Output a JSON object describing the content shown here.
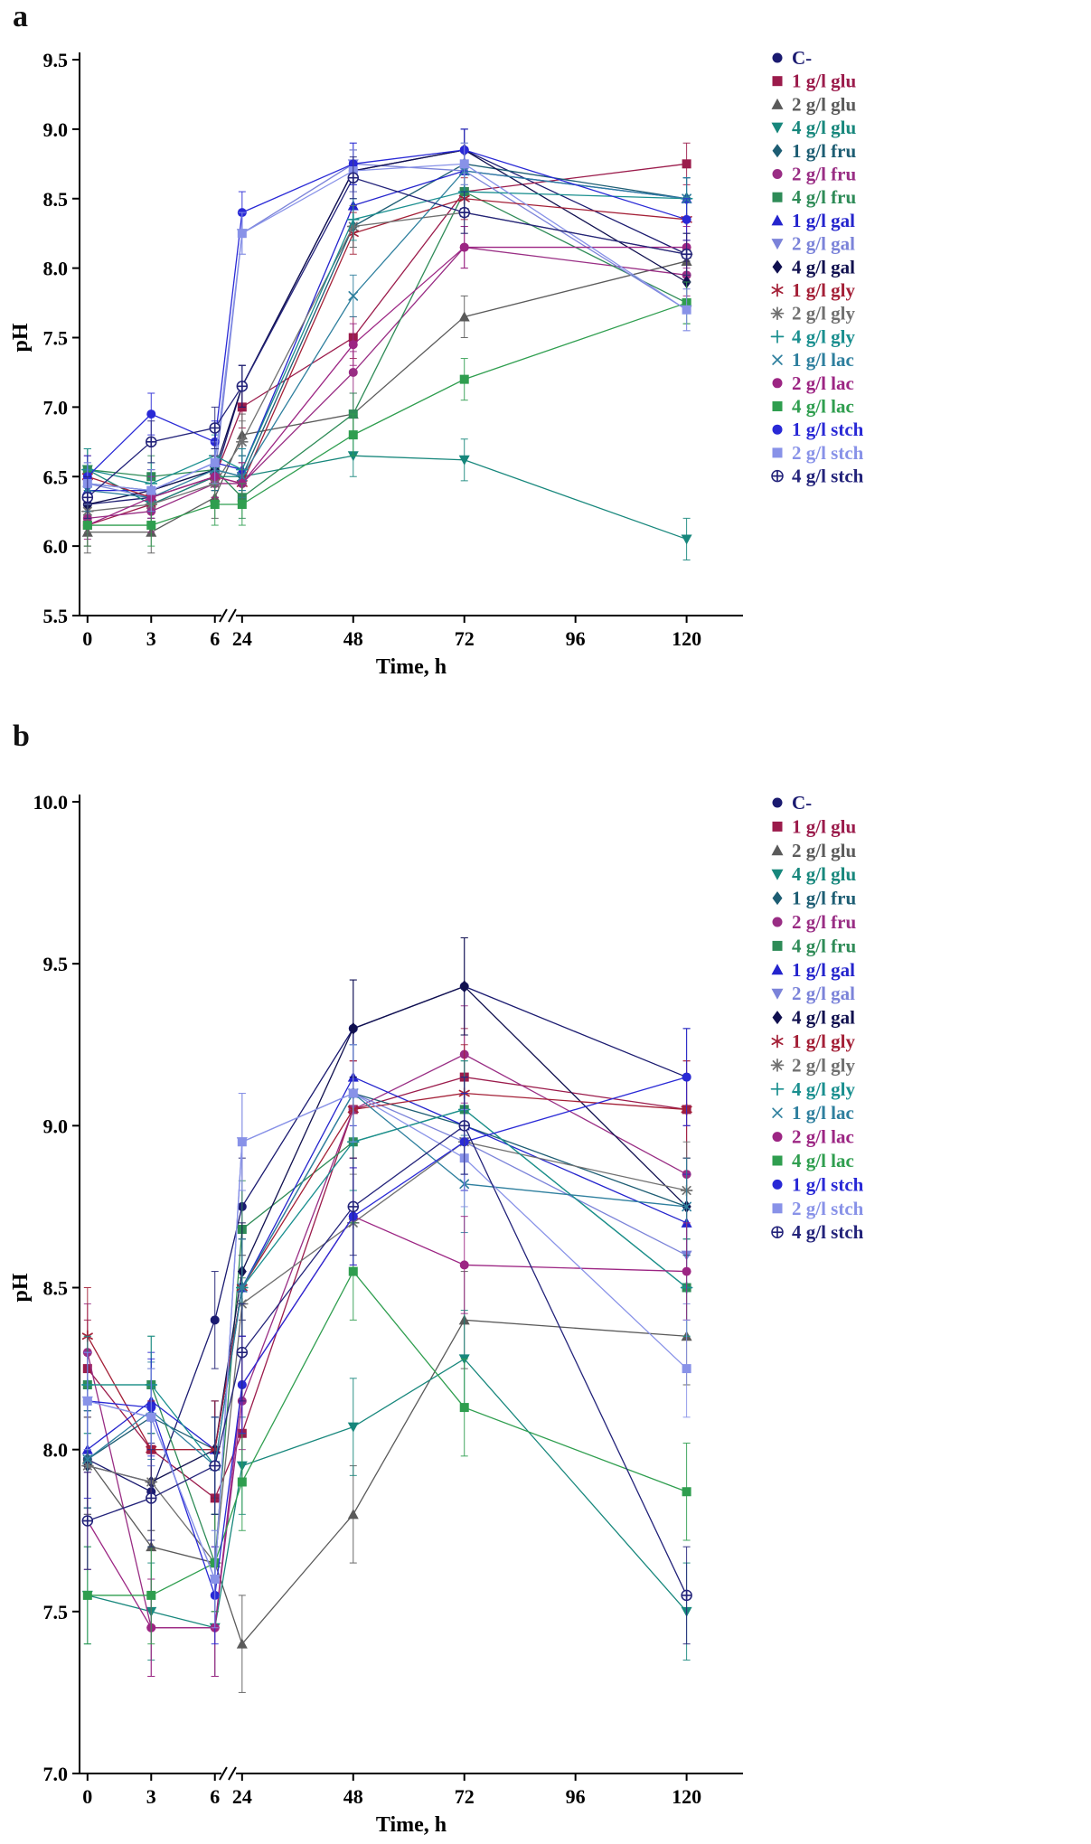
{
  "page": {
    "panel_a_label": "a",
    "panel_b_label": "b"
  },
  "chart_data": [
    {
      "type": "line",
      "panel": "a",
      "xlabel": "Time, h",
      "ylabel": "pH",
      "x": [
        0,
        3,
        6,
        24,
        48,
        72,
        120
      ],
      "x_ticks": [
        0,
        3,
        6,
        24,
        48,
        72,
        96,
        120
      ],
      "x_axis_break": [
        6,
        24
      ],
      "ylim": [
        5.5,
        9.5
      ],
      "y_ticks": [
        5.5,
        6.0,
        6.5,
        7.0,
        7.5,
        8.0,
        8.5,
        9.0,
        9.5
      ],
      "error_bar": 0.15,
      "grid": false,
      "legend_position": "right",
      "series": [
        {
          "name": "C-",
          "color": "#1a1a70",
          "marker": "circle",
          "values": [
            6.3,
            6.35,
            6.5,
            7.15,
            8.7,
            8.85,
            8.1
          ]
        },
        {
          "name": "1 g/l glu",
          "color": "#9b1b4b",
          "marker": "square",
          "values": [
            6.15,
            6.3,
            6.5,
            7.0,
            7.5,
            8.55,
            8.75
          ]
        },
        {
          "name": "2 g/l glu",
          "color": "#5a5a5a",
          "marker": "triangle-up",
          "values": [
            6.1,
            6.1,
            6.35,
            6.8,
            6.95,
            7.65,
            8.05
          ]
        },
        {
          "name": "4 g/l glu",
          "color": "#17877c",
          "marker": "triangle-down",
          "values": [
            6.55,
            6.3,
            6.5,
            6.5,
            6.65,
            6.62,
            6.05
          ]
        },
        {
          "name": "1 g/l fru",
          "color": "#1d5d73",
          "marker": "diamond",
          "values": [
            6.45,
            6.4,
            6.55,
            6.5,
            8.3,
            8.75,
            8.5
          ]
        },
        {
          "name": "2 g/l fru",
          "color": "#992d84",
          "marker": "circle",
          "values": [
            6.2,
            6.25,
            6.45,
            6.45,
            7.25,
            8.15,
            7.95
          ]
        },
        {
          "name": "4 g/l fru",
          "color": "#2e8b57",
          "marker": "square",
          "values": [
            6.55,
            6.5,
            6.55,
            6.35,
            6.95,
            8.55,
            7.75
          ]
        },
        {
          "name": "1 g/l gal",
          "color": "#2424cd",
          "marker": "triangle-up",
          "values": [
            6.4,
            6.4,
            6.6,
            6.55,
            8.45,
            8.7,
            8.5
          ]
        },
        {
          "name": "2 g/l gal",
          "color": "#7b83d9",
          "marker": "triangle-down",
          "values": [
            6.45,
            6.35,
            6.5,
            8.25,
            8.75,
            8.7,
            7.7
          ]
        },
        {
          "name": "4 g/l gal",
          "color": "#10104f",
          "marker": "diamond",
          "values": [
            6.3,
            6.4,
            6.55,
            7.15,
            8.7,
            8.85,
            7.9
          ]
        },
        {
          "name": "1 g/l gly",
          "color": "#a42037",
          "marker": "asterisk",
          "values": [
            6.5,
            6.35,
            6.5,
            6.45,
            8.25,
            8.5,
            8.35
          ]
        },
        {
          "name": "2 g/l gly",
          "color": "#707070",
          "marker": "star",
          "values": [
            6.25,
            6.3,
            6.45,
            6.75,
            8.3,
            8.4,
            8.1
          ]
        },
        {
          "name": "4 g/l gly",
          "color": "#1a8f8f",
          "marker": "plus",
          "values": [
            6.55,
            6.45,
            6.65,
            6.55,
            8.35,
            8.55,
            8.5
          ]
        },
        {
          "name": "1 g/l lac",
          "color": "#2e7f9e",
          "marker": "x",
          "values": [
            6.4,
            6.35,
            6.55,
            6.5,
            7.8,
            8.7,
            8.5
          ]
        },
        {
          "name": "2 g/l lac",
          "color": "#9c2583",
          "marker": "circle",
          "values": [
            6.15,
            6.35,
            6.5,
            6.45,
            7.45,
            8.15,
            8.15
          ]
        },
        {
          "name": "4 g/l lac",
          "color": "#2f9e4f",
          "marker": "square",
          "values": [
            6.15,
            6.15,
            6.3,
            6.3,
            6.8,
            7.2,
            7.75
          ]
        },
        {
          "name": "1 g/l stch",
          "color": "#2929d6",
          "marker": "circle",
          "values": [
            6.5,
            6.95,
            6.75,
            8.4,
            8.75,
            8.85,
            8.35
          ]
        },
        {
          "name": "2 g/l stch",
          "color": "#8892e8",
          "marker": "square",
          "values": [
            6.45,
            6.4,
            6.6,
            8.25,
            8.7,
            8.75,
            7.7
          ]
        },
        {
          "name": "4 g/l stch",
          "color": "#23237a",
          "marker": "circle-cross",
          "values": [
            6.35,
            6.75,
            6.85,
            7.15,
            8.65,
            8.4,
            8.1
          ]
        }
      ]
    },
    {
      "type": "line",
      "panel": "b",
      "xlabel": "Time, h",
      "ylabel": "pH",
      "x": [
        0,
        3,
        6,
        24,
        48,
        72,
        120
      ],
      "x_ticks": [
        0,
        3,
        6,
        24,
        48,
        72,
        96,
        120
      ],
      "x_axis_break": [
        6,
        24
      ],
      "ylim": [
        7.0,
        10.0
      ],
      "y_ticks": [
        7.0,
        7.5,
        8.0,
        8.5,
        9.0,
        9.5,
        10.0
      ],
      "error_bar": 0.15,
      "grid": false,
      "legend_position": "right",
      "series": [
        {
          "name": "C-",
          "color": "#1a1a70",
          "marker": "circle",
          "values": [
            7.97,
            7.87,
            8.4,
            8.75,
            9.3,
            9.43,
            9.15
          ]
        },
        {
          "name": "1 g/l glu",
          "color": "#9b1b4b",
          "marker": "square",
          "values": [
            8.25,
            8.0,
            7.85,
            8.05,
            9.05,
            9.15,
            9.05
          ]
        },
        {
          "name": "2 g/l glu",
          "color": "#5a5a5a",
          "marker": "triangle-up",
          "values": [
            7.97,
            7.7,
            7.65,
            7.4,
            7.8,
            8.4,
            8.35
          ]
        },
        {
          "name": "4 g/l glu",
          "color": "#17877c",
          "marker": "triangle-down",
          "values": [
            7.55,
            7.5,
            7.45,
            7.95,
            8.07,
            8.28,
            7.5
          ]
        },
        {
          "name": "1 g/l fru",
          "color": "#1d5d73",
          "marker": "diamond",
          "values": [
            7.97,
            8.1,
            8.0,
            8.5,
            9.1,
            9.0,
            8.75
          ]
        },
        {
          "name": "2 g/l fru",
          "color": "#992d84",
          "marker": "circle",
          "values": [
            8.3,
            7.45,
            7.45,
            8.15,
            9.05,
            9.22,
            8.85
          ]
        },
        {
          "name": "4 g/l fru",
          "color": "#2e8b57",
          "marker": "square",
          "values": [
            8.2,
            8.2,
            7.65,
            8.68,
            8.95,
            9.05,
            8.5
          ]
        },
        {
          "name": "1 g/l gal",
          "color": "#2424cd",
          "marker": "triangle-up",
          "values": [
            8.0,
            8.15,
            8.0,
            8.5,
            9.15,
            9.0,
            8.7
          ]
        },
        {
          "name": "2 g/l gal",
          "color": "#7b83d9",
          "marker": "triangle-down",
          "values": [
            8.15,
            8.1,
            7.6,
            8.95,
            9.1,
            8.95,
            8.6
          ]
        },
        {
          "name": "4 g/l gal",
          "color": "#10104f",
          "marker": "diamond",
          "values": [
            7.95,
            7.9,
            8.0,
            8.55,
            9.3,
            9.43,
            8.75
          ]
        },
        {
          "name": "1 g/l gly",
          "color": "#a42037",
          "marker": "asterisk",
          "values": [
            8.35,
            8.0,
            8.0,
            8.5,
            9.05,
            9.1,
            9.05
          ]
        },
        {
          "name": "2 g/l gly",
          "color": "#707070",
          "marker": "star",
          "values": [
            7.95,
            7.9,
            7.65,
            8.45,
            8.7,
            8.95,
            8.8
          ]
        },
        {
          "name": "4 g/l gly",
          "color": "#1a8f8f",
          "marker": "plus",
          "values": [
            8.2,
            8.2,
            7.95,
            8.5,
            8.95,
            9.05,
            8.5
          ]
        },
        {
          "name": "1 g/l lac",
          "color": "#2e7f9e",
          "marker": "x",
          "values": [
            7.97,
            8.12,
            7.95,
            8.5,
            9.1,
            8.82,
            8.75
          ]
        },
        {
          "name": "2 g/l lac",
          "color": "#9c2583",
          "marker": "circle",
          "values": [
            7.78,
            7.45,
            7.45,
            8.2,
            8.72,
            8.57,
            8.55
          ]
        },
        {
          "name": "4 g/l lac",
          "color": "#2f9e4f",
          "marker": "square",
          "values": [
            7.55,
            7.55,
            7.65,
            7.9,
            8.55,
            8.13,
            7.87
          ]
        },
        {
          "name": "1 g/l stch",
          "color": "#2929d6",
          "marker": "circle",
          "values": [
            8.15,
            8.13,
            7.55,
            8.2,
            8.72,
            8.95,
            9.15
          ]
        },
        {
          "name": "2 g/l stch",
          "color": "#8892e8",
          "marker": "square",
          "values": [
            8.15,
            8.1,
            7.6,
            8.95,
            9.1,
            8.9,
            8.25
          ]
        },
        {
          "name": "4 g/l stch",
          "color": "#23237a",
          "marker": "circle-cross",
          "values": [
            7.78,
            7.85,
            7.95,
            8.3,
            8.75,
            9.0,
            7.55
          ]
        }
      ]
    }
  ]
}
